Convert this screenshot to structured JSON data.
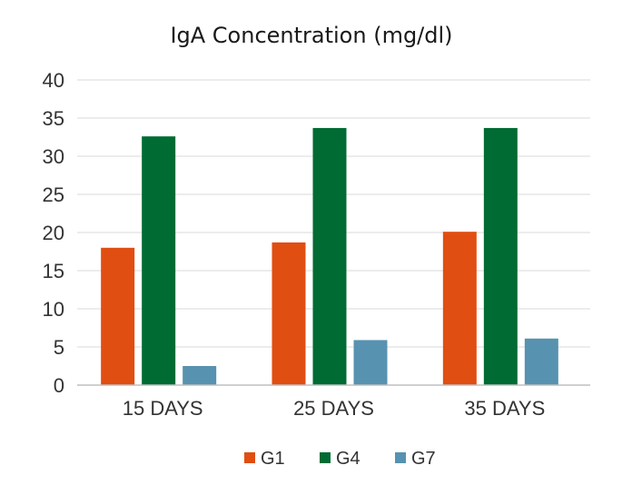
{
  "chart_data": {
    "type": "bar",
    "title": "IgA Concentration (mg/dl)",
    "xlabel": "",
    "ylabel": "",
    "categories": [
      "15 DAYS",
      "25 DAYS",
      "35 DAYS"
    ],
    "series": [
      {
        "name": "G1",
        "color": "#E04E12",
        "values": [
          18,
          18.7,
          20.1
        ]
      },
      {
        "name": "G4",
        "color": "#006B33",
        "values": [
          32.6,
          33.7,
          33.7
        ]
      },
      {
        "name": "G7",
        "color": "#5792B0",
        "values": [
          2.5,
          5.9,
          6.1
        ]
      }
    ],
    "ylim": [
      0,
      40
    ],
    "yticks": [
      "0",
      "5",
      "10",
      "15",
      "20",
      "25",
      "30",
      "35",
      "40"
    ],
    "ytick_values": [
      0,
      5,
      10,
      15,
      20,
      25,
      30,
      35,
      40
    ],
    "grid": true,
    "legend_position": "bottom-center"
  }
}
